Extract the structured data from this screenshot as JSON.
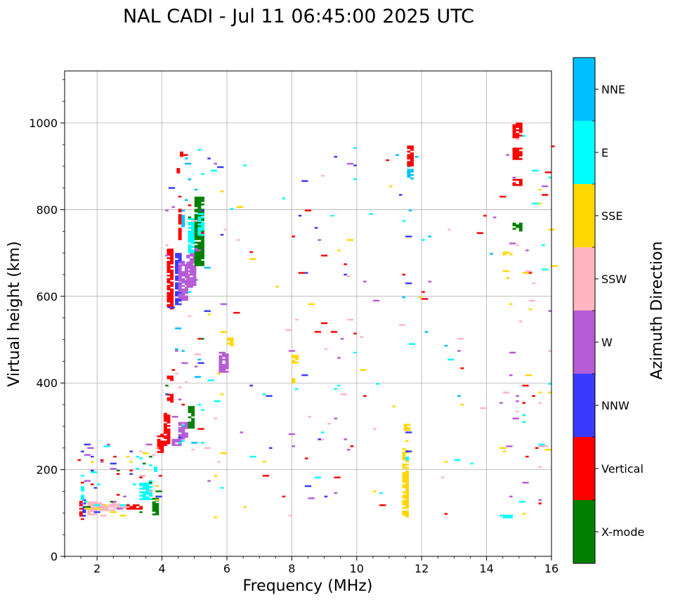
{
  "chart_data": {
    "type": "scatter",
    "title": "NAL CADI - Jul 11 06:45:00 2025 UTC",
    "xlabel": "Frequency (MHz)",
    "ylabel": "Virtual height (km)",
    "xlim": [
      1,
      16
    ],
    "ylim": [
      0,
      1120
    ],
    "xticks": [
      2,
      4,
      6,
      8,
      10,
      12,
      14,
      16
    ],
    "yticks": [
      0,
      200,
      400,
      600,
      800,
      1000
    ],
    "grid": true,
    "colorbar": {
      "title": "Azimuth Direction",
      "categories": [
        "X-mode",
        "Vertical",
        "NNW",
        "W",
        "SSW",
        "SSE",
        "E",
        "NNE"
      ],
      "colors": [
        "#008000",
        "#ff0000",
        "#3a3aff",
        "#b55cd6",
        "#ffb6c1",
        "#ffd700",
        "#00ffff",
        "#00bfff"
      ]
    },
    "cell_size": {
      "freq_mhz": 0.1,
      "height_km": 4
    },
    "blocks": [
      {
        "f0": 1.45,
        "f1": 1.55,
        "h0": 92,
        "h1": 125,
        "dir": "Vertical"
      },
      {
        "f0": 1.55,
        "f1": 1.65,
        "h0": 92,
        "h1": 130,
        "dir": "NNW"
      },
      {
        "f0": 1.5,
        "f1": 1.6,
        "h0": 130,
        "h1": 160,
        "dir": "E"
      },
      {
        "f0": 1.7,
        "f1": 1.95,
        "h0": 95,
        "h1": 125,
        "dir": "SSW"
      },
      {
        "f0": 1.95,
        "f1": 2.5,
        "h0": 105,
        "h1": 125,
        "dir": "SSW"
      },
      {
        "f0": 2.5,
        "f1": 3.0,
        "h0": 110,
        "h1": 120,
        "dir": "SSW"
      },
      {
        "f0": 2.9,
        "f1": 3.4,
        "h0": 108,
        "h1": 118,
        "dir": "Vertical"
      },
      {
        "f0": 3.3,
        "f1": 3.7,
        "h0": 130,
        "h1": 170,
        "dir": "E"
      },
      {
        "f0": 3.7,
        "f1": 3.85,
        "h0": 95,
        "h1": 135,
        "dir": "X-mode"
      },
      {
        "f0": 3.75,
        "f1": 3.85,
        "h0": 195,
        "h1": 205,
        "dir": "E"
      },
      {
        "f0": 3.85,
        "f1": 4.05,
        "h0": 235,
        "h1": 280,
        "dir": "Vertical"
      },
      {
        "f0": 4.05,
        "f1": 4.2,
        "h0": 255,
        "h1": 330,
        "dir": "Vertical"
      },
      {
        "f0": 4.15,
        "f1": 4.3,
        "h0": 355,
        "h1": 375,
        "dir": "Vertical"
      },
      {
        "f0": 4.15,
        "f1": 4.3,
        "h0": 405,
        "h1": 415,
        "dir": "Vertical"
      },
      {
        "f0": 4.3,
        "f1": 4.6,
        "h0": 255,
        "h1": 270,
        "dir": "W"
      },
      {
        "f0": 4.5,
        "f1": 4.8,
        "h0": 270,
        "h1": 310,
        "dir": "W"
      },
      {
        "f0": 4.8,
        "f1": 5.0,
        "h0": 295,
        "h1": 345,
        "dir": "X-mode"
      },
      {
        "f0": 4.15,
        "f1": 4.35,
        "h0": 570,
        "h1": 710,
        "dir": "Vertical"
      },
      {
        "f0": 4.4,
        "f1": 4.6,
        "h0": 580,
        "h1": 700,
        "dir": "NNW"
      },
      {
        "f0": 4.5,
        "f1": 4.75,
        "h0": 590,
        "h1": 680,
        "dir": "W"
      },
      {
        "f0": 4.5,
        "f1": 4.6,
        "h0": 730,
        "h1": 800,
        "dir": "Vertical"
      },
      {
        "f0": 4.45,
        "f1": 4.55,
        "h0": 880,
        "h1": 895,
        "dir": "Vertical"
      },
      {
        "f0": 4.55,
        "f1": 4.65,
        "h0": 922,
        "h1": 932,
        "dir": "Vertical"
      },
      {
        "f0": 4.75,
        "f1": 5.0,
        "h0": 620,
        "h1": 700,
        "dir": "W"
      },
      {
        "f0": 4.8,
        "f1": 5.0,
        "h0": 700,
        "h1": 770,
        "dir": "E"
      },
      {
        "f0": 5.0,
        "f1": 5.3,
        "h0": 670,
        "h1": 830,
        "dir": "X-mode"
      },
      {
        "f0": 5.1,
        "f1": 5.3,
        "h0": 740,
        "h1": 790,
        "dir": "E"
      },
      {
        "f0": 4.6,
        "f1": 4.7,
        "h0": 760,
        "h1": 800,
        "dir": "NNE"
      },
      {
        "f0": 5.75,
        "f1": 6.0,
        "h0": 420,
        "h1": 470,
        "dir": "W"
      },
      {
        "f0": 6.0,
        "f1": 6.2,
        "h0": 485,
        "h1": 505,
        "dir": "SSE"
      },
      {
        "f0": 11.4,
        "f1": 11.55,
        "h0": 90,
        "h1": 250,
        "dir": "SSE"
      },
      {
        "f0": 11.5,
        "f1": 11.6,
        "h0": 210,
        "h1": 230,
        "dir": "E"
      },
      {
        "f0": 11.45,
        "f1": 11.6,
        "h0": 290,
        "h1": 305,
        "dir": "SSE"
      },
      {
        "f0": 11.55,
        "f1": 11.7,
        "h0": 870,
        "h1": 900,
        "dir": "NNE"
      },
      {
        "f0": 11.55,
        "f1": 11.7,
        "h0": 900,
        "h1": 945,
        "dir": "Vertical"
      },
      {
        "f0": 8.0,
        "f1": 8.15,
        "h0": 445,
        "h1": 465,
        "dir": "SSE"
      },
      {
        "f0": 8.0,
        "f1": 8.1,
        "h0": 395,
        "h1": 410,
        "dir": "SSE"
      },
      {
        "f0": 14.8,
        "f1": 15.1,
        "h0": 965,
        "h1": 1000,
        "dir": "Vertical"
      },
      {
        "f0": 14.8,
        "f1": 15.1,
        "h0": 915,
        "h1": 940,
        "dir": "Vertical"
      },
      {
        "f0": 14.8,
        "f1": 15.1,
        "h0": 855,
        "h1": 870,
        "dir": "Vertical"
      },
      {
        "f0": 14.8,
        "f1": 15.1,
        "h0": 750,
        "h1": 770,
        "dir": "X-mode"
      },
      {
        "f0": 14.5,
        "f1": 14.8,
        "h0": 695,
        "h1": 702,
        "dir": "SSE"
      },
      {
        "f0": 14.5,
        "f1": 14.8,
        "h0": 88,
        "h1": 95,
        "dir": "E"
      }
    ],
    "scatter_seed": 20250711,
    "scatter_count": 360,
    "scatter_zones": [
      {
        "f0": 1.4,
        "f1": 3.9,
        "h0": 85,
        "h1": 260,
        "w": 70,
        "dirs": [
          "SSW",
          "E",
          "SSE",
          "Vertical",
          "NNW",
          "X-mode",
          "W"
        ]
      },
      {
        "f0": 4.0,
        "f1": 5.4,
        "h0": 230,
        "h1": 940,
        "w": 80,
        "dirs": [
          "Vertical",
          "NNW",
          "W",
          "E",
          "NNE",
          "X-mode",
          "SSW"
        ]
      },
      {
        "f0": 5.4,
        "f1": 8.0,
        "h0": 85,
        "h1": 910,
        "w": 40,
        "dirs": [
          "W",
          "SSW",
          "NNW",
          "SSE",
          "Vertical",
          "E"
        ]
      },
      {
        "f0": 7.9,
        "f1": 10.0,
        "h0": 85,
        "h1": 940,
        "w": 55,
        "dirs": [
          "SSE",
          "NNW",
          "E",
          "SSW",
          "W",
          "Vertical"
        ]
      },
      {
        "f0": 10.0,
        "f1": 14.4,
        "h0": 85,
        "h1": 930,
        "w": 50,
        "dirs": [
          "SSE",
          "NNW",
          "W",
          "SSW",
          "E",
          "Vertical",
          "NNE"
        ]
      },
      {
        "f0": 14.4,
        "f1": 16.0,
        "h0": 85,
        "h1": 990,
        "w": 65,
        "dirs": [
          "Vertical",
          "SSE",
          "SSW",
          "W",
          "E"
        ]
      }
    ]
  }
}
